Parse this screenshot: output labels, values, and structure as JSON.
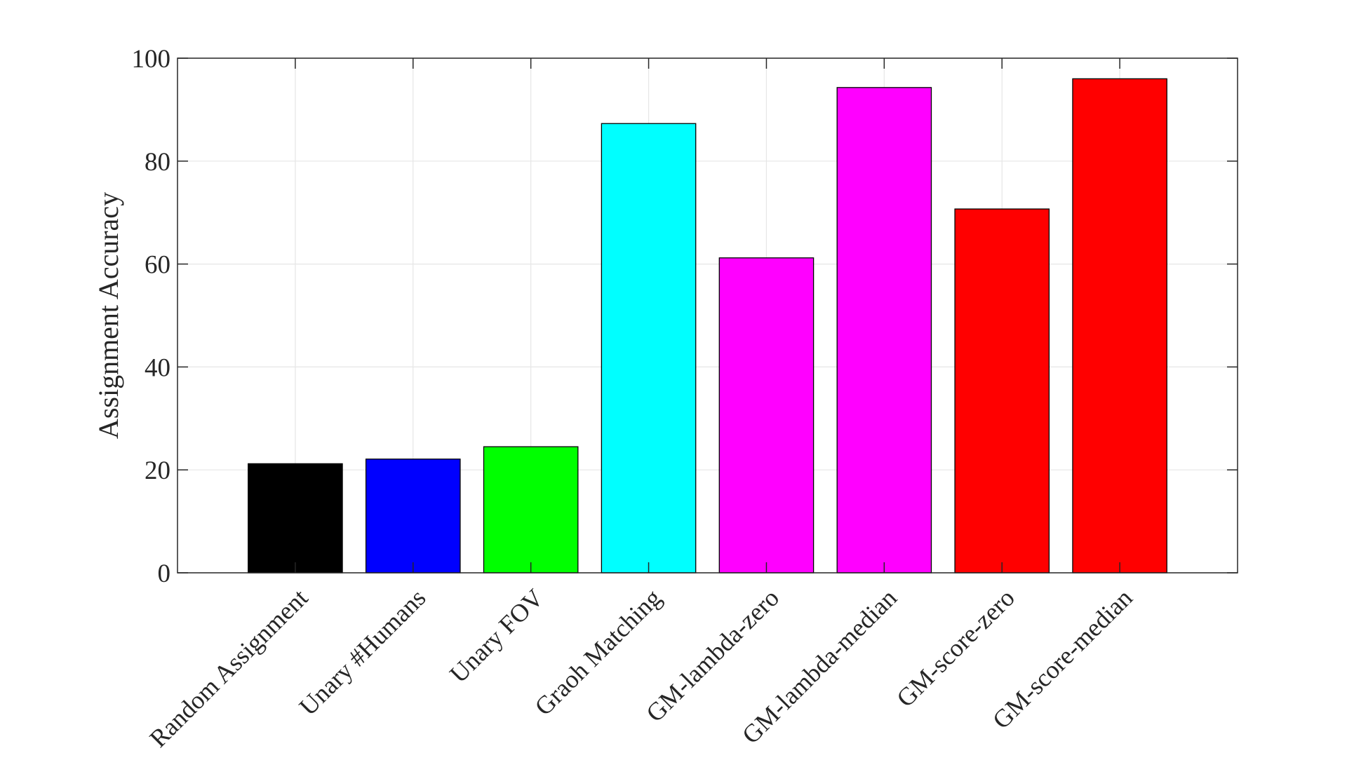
{
  "chart_data": {
    "type": "bar",
    "title": "",
    "xlabel": "",
    "ylabel": "Assignment Accuracy",
    "ylim": [
      0,
      100
    ],
    "yticks": [
      0,
      20,
      40,
      60,
      80,
      100
    ],
    "grid": true,
    "categories": [
      "Random Assignment",
      "Unary #Humans",
      "Unary FOV",
      "Graoh Matching",
      "GM-lambda-zero",
      "GM-lambda-median",
      "GM-score-zero",
      "GM-score-median"
    ],
    "values": [
      21.2,
      22.1,
      24.5,
      87.3,
      61.2,
      94.3,
      70.7,
      96.0
    ],
    "colors": [
      "#000000",
      "#0000ff",
      "#00ff00",
      "#00ffff",
      "#ff00ff",
      "#ff00ff",
      "#ff0000",
      "#ff0000"
    ]
  }
}
